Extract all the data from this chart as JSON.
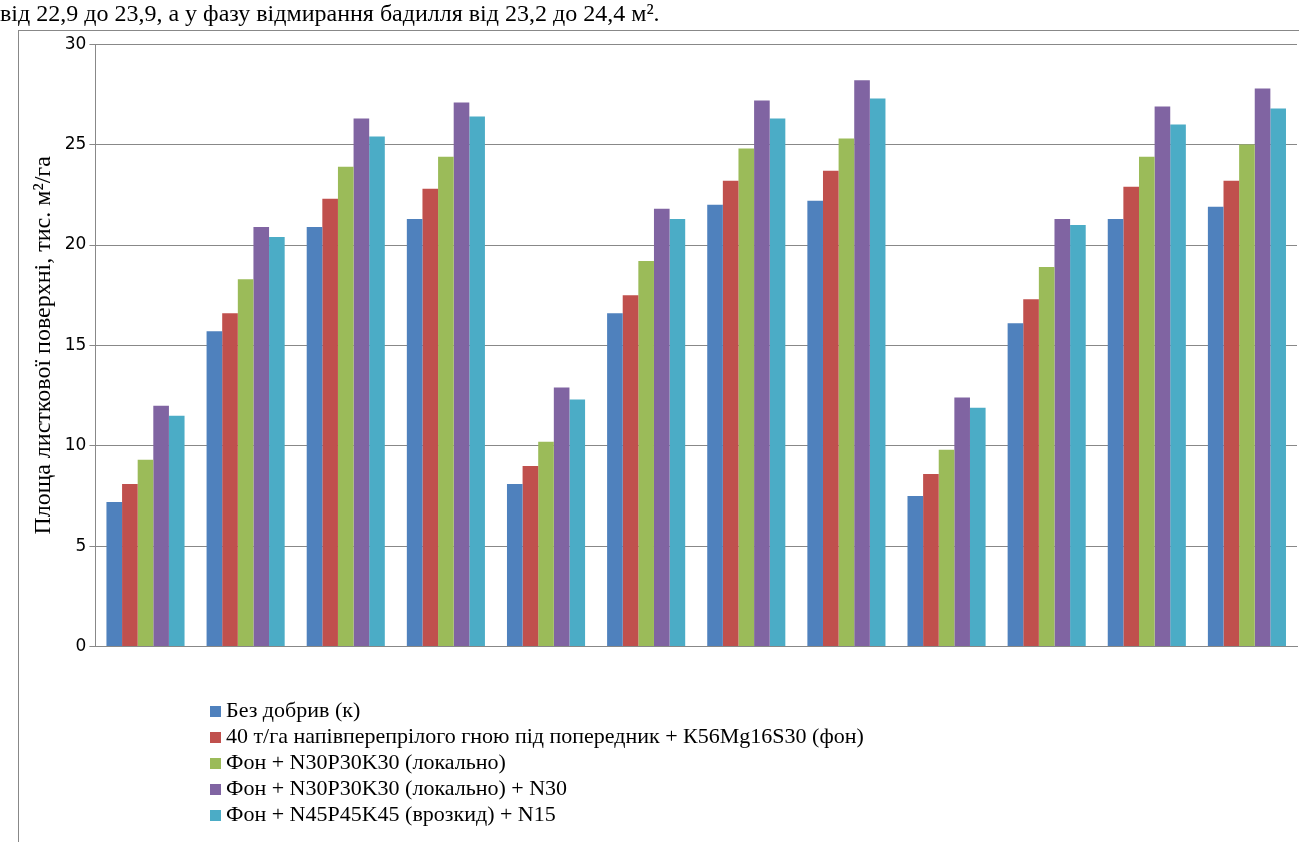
{
  "chart_data": {
    "type": "bar",
    "ylabel": "Площа листкової поверхні, тис. м²/га",
    "annotations": [
      "від 22,9 до 23,9, а у фазу відмирання бадилля від 23,2 до 24,4 м²."
    ],
    "categories": [
      null,
      null,
      null,
      null,
      null,
      null,
      null,
      null,
      null,
      null,
      null,
      null
    ],
    "series": [
      {
        "name": "Без добрив (к)",
        "color": "#4f81bd",
        "values": [
          7.2,
          15.7,
          20.9,
          21.3,
          8.1,
          16.6,
          22.0,
          22.2,
          7.5,
          16.1,
          21.3,
          21.9
        ]
      },
      {
        "name": "40 т/га напівперепрілого гною під попередник + К56Mg16S30 (фон)",
        "color": "#c0504d",
        "values": [
          8.1,
          16.6,
          22.3,
          22.8,
          9.0,
          17.5,
          23.2,
          23.7,
          8.6,
          17.3,
          22.9,
          23.2
        ]
      },
      {
        "name": "Фон + N30P30K30 (локально)",
        "color": "#9bbb59",
        "values": [
          9.3,
          18.3,
          23.9,
          24.4,
          10.2,
          19.2,
          24.8,
          25.3,
          9.8,
          18.9,
          24.4,
          25.0
        ]
      },
      {
        "name": "Фон + N30P30K30 (локально) + N30",
        "color": "#8064a2",
        "values": [
          12.0,
          20.9,
          26.3,
          27.1,
          12.9,
          21.8,
          27.2,
          28.2,
          12.4,
          21.3,
          26.9,
          27.8
        ]
      },
      {
        "name": "Фон + N45P45K45 (врозкид) + N15",
        "color": "#4bacc6",
        "values": [
          11.5,
          20.4,
          25.4,
          26.4,
          12.3,
          21.3,
          26.3,
          27.3,
          11.9,
          21.0,
          26.0,
          26.8
        ]
      }
    ],
    "ylim": [
      0,
      30
    ],
    "yticks": [
      0,
      5,
      10,
      15,
      20,
      25,
      30
    ],
    "grid": "y",
    "legend": "bottom"
  }
}
